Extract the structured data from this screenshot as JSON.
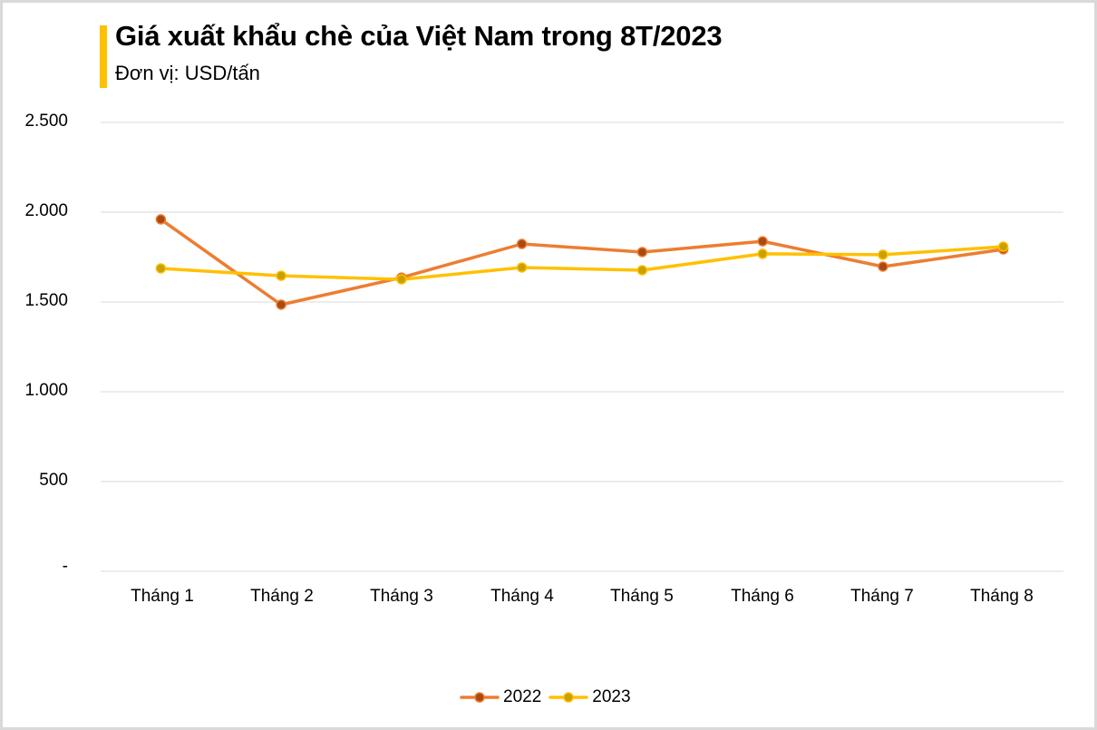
{
  "header": {
    "title": "Giá xuất khẩu chè của Việt Nam trong 8T/2023",
    "subtitle": "Đơn vị: USD/tấn",
    "accent_color": "#FFC000"
  },
  "y_axis": {
    "ticks": [
      {
        "value": 2500,
        "label": "2.500"
      },
      {
        "value": 2000,
        "label": "2.000"
      },
      {
        "value": 1500,
        "label": "1.500"
      },
      {
        "value": 1000,
        "label": "1.000"
      },
      {
        "value": 500,
        "label": "500"
      },
      {
        "value": 0,
        "label": "-"
      }
    ]
  },
  "x_axis": {
    "labels": [
      "Tháng 1",
      "Tháng 2",
      "Tháng 3",
      "Tháng 4",
      "Tháng 5",
      "Tháng 6",
      "Tháng 7",
      "Tháng 8"
    ]
  },
  "legend": {
    "items": [
      {
        "label": "2022",
        "line_color": "#ED7D31",
        "marker_color": "#A84A12"
      },
      {
        "label": "2023",
        "line_color": "#FFC000",
        "marker_color": "#C9A000"
      }
    ]
  },
  "chart_data": {
    "type": "line",
    "title": "Giá xuất khẩu chè của Việt Nam trong 8T/2023",
    "subtitle": "Đơn vị: USD/tấn",
    "xlabel": "",
    "ylabel": "USD/tấn",
    "categories": [
      "Tháng 1",
      "Tháng 2",
      "Tháng 3",
      "Tháng 4",
      "Tháng 5",
      "Tháng 6",
      "Tháng 7",
      "Tháng 8"
    ],
    "series": [
      {
        "name": "2022",
        "color": "#ED7D31",
        "values": [
          1960,
          1485,
          1636,
          1823,
          1778,
          1838,
          1697,
          1793
        ]
      },
      {
        "name": "2023",
        "color": "#FFC000",
        "values": [
          1687,
          1646,
          1626,
          1692,
          1677,
          1768,
          1763,
          1808
        ]
      }
    ],
    "ylim": [
      0,
      2500
    ],
    "yticks": [
      0,
      500,
      1000,
      1500,
      2000,
      2500
    ],
    "grid": true,
    "legend_position": "bottom"
  }
}
